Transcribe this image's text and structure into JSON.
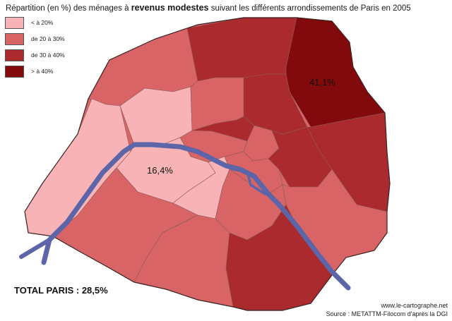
{
  "title": {
    "prefix": "Répartition (en %) des ménages à ",
    "bold": "revenus modestes",
    "suffix": " suivant les différents arrondissements de Paris en 2005"
  },
  "legend": [
    {
      "label": "< à 20%",
      "color": "#f7b3b5"
    },
    {
      "label": "de 20 à 30%",
      "color": "#d86465"
    },
    {
      "label": "de 30 à 40%",
      "color": "#ab2a2d"
    },
    {
      "label": "> à 40%",
      "color": "#830a0c"
    }
  ],
  "river_color": "#5b65a8",
  "labels": {
    "max_value": "41,1%",
    "min_value": "16,4%"
  },
  "total": "TOTAL PARIS : 28,5%",
  "credits": {
    "website": "www.le-cartographe.net",
    "source": "Source : METATTM-Filocom d'après la DGI"
  }
}
